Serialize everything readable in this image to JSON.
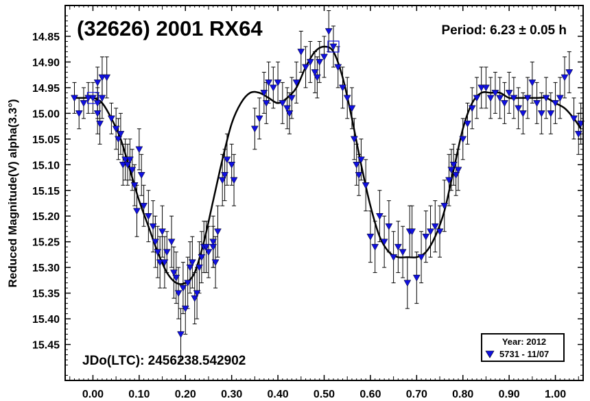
{
  "chart_data": {
    "type": "scatter",
    "title": "(32626) 2001 RX64",
    "period_text": "Period: 6.23 ± 0.05 h",
    "jdo_text": "JDo(LTC): 2456238.542902",
    "xlabel": "",
    "ylabel": "Reduced Magnitude(V) alpha(3.3°)",
    "xlim": [
      -0.06,
      1.06
    ],
    "ylim": [
      15.52,
      14.79
    ],
    "x_ticks": [
      0.0,
      0.1,
      0.2,
      0.3,
      0.4,
      0.5,
      0.6,
      0.7,
      0.8,
      0.9,
      1.0
    ],
    "x_tick_labels": [
      "0.00",
      "0.10",
      "0.20",
      "0.30",
      "0.40",
      "0.50",
      "0.60",
      "0.70",
      "0.80",
      "0.90",
      "1.00"
    ],
    "y_ticks": [
      14.85,
      14.9,
      14.95,
      15.0,
      15.05,
      15.1,
      15.15,
      15.2,
      15.25,
      15.3,
      15.35,
      15.4,
      15.45
    ],
    "y_tick_labels": [
      "14.85",
      "14.90",
      "14.95",
      "15.00",
      "15.05",
      "15.10",
      "15.15",
      "15.20",
      "15.25",
      "15.30",
      "15.35",
      "15.40",
      "15.45"
    ],
    "legend": {
      "position": "bottom-right",
      "title": "Year: 2012",
      "entries": [
        {
          "label": "5731 - 11/07",
          "marker": "triangle-down",
          "color": "#1010e0"
        }
      ]
    },
    "marker_color": "#1010e0",
    "series": [
      {
        "name": "5731 - 11/07",
        "points": [
          [
            -0.04,
            14.97,
            0.03
          ],
          [
            -0.03,
            15.0,
            0.03
          ],
          [
            -0.02,
            14.98,
            0.03
          ],
          [
            -0.01,
            14.97,
            0.03
          ],
          [
            0.0,
            14.97,
            0.03
          ],
          [
            0.01,
            14.94,
            0.03
          ],
          [
            0.01,
            14.98,
            0.03
          ],
          [
            0.02,
            14.93,
            0.04
          ],
          [
            0.03,
            14.93,
            0.04
          ],
          [
            0.01,
            15.0,
            0.04
          ],
          [
            0.015,
            15.02,
            0.04
          ],
          [
            0.02,
            14.97,
            0.04
          ],
          [
            0.04,
            15.01,
            0.03
          ],
          [
            0.05,
            15.03,
            0.04
          ],
          [
            0.055,
            15.05,
            0.04
          ],
          [
            0.06,
            15.04,
            0.04
          ],
          [
            0.065,
            15.1,
            0.04
          ],
          [
            0.07,
            15.09,
            0.04
          ],
          [
            0.075,
            15.1,
            0.04
          ],
          [
            0.08,
            15.09,
            0.04
          ],
          [
            0.085,
            15.11,
            0.04
          ],
          [
            0.09,
            15.14,
            0.04
          ],
          [
            0.095,
            15.19,
            0.05
          ],
          [
            0.1,
            15.07,
            0.04
          ],
          [
            0.105,
            15.12,
            0.04
          ],
          [
            0.11,
            15.18,
            0.04
          ],
          [
            0.12,
            15.2,
            0.05
          ],
          [
            0.13,
            15.22,
            0.05
          ],
          [
            0.135,
            15.25,
            0.05
          ],
          [
            0.14,
            15.27,
            0.05
          ],
          [
            0.145,
            15.29,
            0.05
          ],
          [
            0.15,
            15.23,
            0.05
          ],
          [
            0.155,
            15.29,
            0.05
          ],
          [
            0.16,
            15.27,
            0.04
          ],
          [
            0.17,
            15.25,
            0.05
          ],
          [
            0.175,
            15.31,
            0.05
          ],
          [
            0.18,
            15.32,
            0.05
          ],
          [
            0.185,
            15.35,
            0.05
          ],
          [
            0.19,
            15.43,
            0.05
          ],
          [
            0.195,
            15.34,
            0.05
          ],
          [
            0.2,
            15.38,
            0.05
          ],
          [
            0.205,
            15.33,
            0.05
          ],
          [
            0.21,
            15.3,
            0.05
          ],
          [
            0.215,
            15.29,
            0.05
          ],
          [
            0.22,
            15.36,
            0.05
          ],
          [
            0.225,
            15.35,
            0.05
          ],
          [
            0.23,
            15.3,
            0.05
          ],
          [
            0.235,
            15.28,
            0.05
          ],
          [
            0.24,
            15.26,
            0.05
          ],
          [
            0.245,
            15.26,
            0.05
          ],
          [
            0.25,
            15.27,
            0.05
          ],
          [
            0.26,
            15.25,
            0.05
          ],
          [
            0.26,
            15.26,
            0.04
          ],
          [
            0.265,
            15.29,
            0.05
          ],
          [
            0.27,
            15.23,
            0.05
          ],
          [
            0.28,
            15.13,
            0.05
          ],
          [
            0.285,
            15.12,
            0.05
          ],
          [
            0.29,
            15.09,
            0.05
          ],
          [
            0.3,
            15.1,
            0.04
          ],
          [
            0.305,
            15.13,
            0.05
          ],
          [
            0.35,
            15.03,
            0.04
          ],
          [
            0.36,
            15.01,
            0.04
          ],
          [
            0.37,
            14.96,
            0.04
          ],
          [
            0.375,
            14.98,
            0.04
          ],
          [
            0.38,
            14.94,
            0.04
          ],
          [
            0.39,
            14.95,
            0.04
          ],
          [
            0.4,
            14.94,
            0.04
          ],
          [
            0.41,
            14.98,
            0.04
          ],
          [
            0.42,
            14.99,
            0.04
          ],
          [
            0.425,
            15.0,
            0.04
          ],
          [
            0.43,
            14.97,
            0.04
          ],
          [
            0.44,
            14.94,
            0.04
          ],
          [
            0.45,
            14.88,
            0.04
          ],
          [
            0.46,
            14.91,
            0.04
          ],
          [
            0.47,
            14.9,
            0.04
          ],
          [
            0.48,
            14.92,
            0.04
          ],
          [
            0.485,
            14.93,
            0.04
          ],
          [
            0.49,
            14.9,
            0.04
          ],
          [
            0.5,
            14.89,
            0.04
          ],
          [
            0.51,
            14.84,
            0.04
          ],
          [
            0.52,
            14.87,
            0.04
          ],
          [
            0.53,
            14.91,
            0.04
          ],
          [
            0.54,
            14.95,
            0.04
          ],
          [
            0.55,
            14.97,
            0.04
          ],
          [
            0.56,
            14.99,
            0.04
          ],
          [
            0.565,
            15.05,
            0.04
          ],
          [
            0.57,
            15.1,
            0.04
          ],
          [
            0.575,
            15.12,
            0.04
          ],
          [
            0.58,
            15.09,
            0.04
          ],
          [
            0.59,
            15.14,
            0.05
          ],
          [
            0.6,
            15.24,
            0.05
          ],
          [
            0.61,
            15.26,
            0.05
          ],
          [
            0.62,
            15.2,
            0.05
          ],
          [
            0.63,
            15.25,
            0.05
          ],
          [
            0.64,
            15.22,
            0.05
          ],
          [
            0.65,
            15.28,
            0.05
          ],
          [
            0.66,
            15.26,
            0.05
          ],
          [
            0.67,
            15.27,
            0.05
          ],
          [
            0.68,
            15.33,
            0.05
          ],
          [
            0.685,
            15.23,
            0.05
          ],
          [
            0.69,
            15.23,
            0.05
          ],
          [
            0.7,
            15.32,
            0.05
          ],
          [
            0.71,
            15.28,
            0.05
          ],
          [
            0.72,
            15.24,
            0.05
          ],
          [
            0.73,
            15.23,
            0.05
          ],
          [
            0.74,
            15.22,
            0.05
          ],
          [
            0.75,
            15.23,
            0.05
          ],
          [
            0.76,
            15.18,
            0.05
          ],
          [
            0.77,
            15.13,
            0.05
          ],
          [
            0.775,
            15.11,
            0.04
          ],
          [
            0.78,
            15.1,
            0.04
          ],
          [
            0.785,
            15.12,
            0.04
          ],
          [
            0.79,
            15.11,
            0.04
          ],
          [
            0.8,
            15.05,
            0.04
          ],
          [
            0.81,
            15.02,
            0.04
          ],
          [
            0.82,
            14.99,
            0.04
          ],
          [
            0.83,
            14.97,
            0.04
          ],
          [
            0.84,
            14.95,
            0.04
          ],
          [
            0.85,
            14.95,
            0.04
          ],
          [
            0.86,
            14.97,
            0.04
          ],
          [
            0.87,
            14.96,
            0.04
          ],
          [
            0.88,
            14.97,
            0.04
          ],
          [
            0.89,
            14.98,
            0.04
          ],
          [
            0.9,
            14.96,
            0.04
          ],
          [
            0.91,
            14.97,
            0.04
          ],
          [
            0.92,
            14.99,
            0.04
          ],
          [
            0.93,
            15.0,
            0.04
          ],
          [
            0.94,
            14.97,
            0.04
          ],
          [
            0.95,
            14.94,
            0.04
          ],
          [
            0.96,
            14.98,
            0.04
          ],
          [
            0.97,
            15.0,
            0.04
          ],
          [
            0.98,
            14.97,
            0.04
          ],
          [
            0.99,
            15.0,
            0.04
          ],
          [
            1.0,
            14.98,
            0.04
          ],
          [
            1.01,
            14.97,
            0.04
          ],
          [
            1.02,
            14.93,
            0.04
          ],
          [
            1.03,
            14.92,
            0.04
          ],
          [
            1.04,
            15.01,
            0.04
          ],
          [
            1.05,
            15.04,
            0.04
          ],
          [
            1.055,
            15.02,
            0.04
          ]
        ]
      }
    ],
    "highlighted_points": [
      [
        0.0,
        14.97
      ],
      [
        0.52,
        14.87
      ]
    ],
    "fit_curve": {
      "x": [
        -0.04,
        -0.02,
        0.0,
        0.02,
        0.04,
        0.06,
        0.08,
        0.1,
        0.12,
        0.14,
        0.16,
        0.18,
        0.2,
        0.22,
        0.24,
        0.26,
        0.28,
        0.3,
        0.32,
        0.34,
        0.36,
        0.38,
        0.4,
        0.42,
        0.44,
        0.46,
        0.48,
        0.5,
        0.52,
        0.54,
        0.56,
        0.58,
        0.6,
        0.62,
        0.64,
        0.66,
        0.68,
        0.7,
        0.72,
        0.74,
        0.76,
        0.78,
        0.8,
        0.82,
        0.84,
        0.86,
        0.88,
        0.9,
        0.92,
        0.94,
        0.96,
        0.98,
        1.0,
        1.02,
        1.04,
        1.055
      ],
      "y": [
        14.97,
        14.97,
        14.97,
        14.98,
        15.01,
        15.05,
        15.11,
        15.17,
        15.22,
        15.27,
        15.31,
        15.33,
        15.33,
        15.31,
        15.25,
        15.17,
        15.09,
        15.02,
        14.98,
        14.96,
        14.96,
        14.97,
        14.98,
        14.97,
        14.95,
        14.91,
        14.88,
        14.87,
        14.88,
        14.93,
        15.01,
        15.1,
        15.18,
        15.24,
        15.27,
        15.28,
        15.28,
        15.28,
        15.27,
        15.24,
        15.19,
        15.11,
        15.03,
        14.98,
        14.96,
        14.96,
        14.96,
        14.97,
        14.97,
        14.97,
        14.97,
        14.97,
        14.98,
        14.99,
        15.01,
        15.03
      ]
    }
  }
}
